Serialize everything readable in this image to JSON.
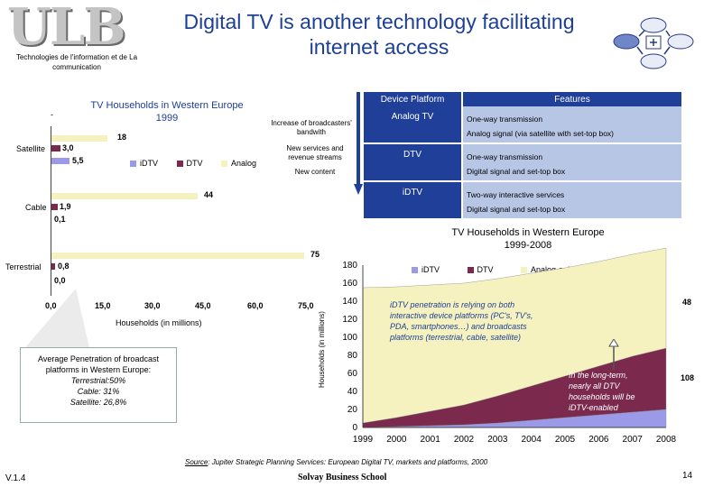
{
  "header": {
    "logo_text": "ULB",
    "logo_subtitle": "Technologies de l'information et de La communication",
    "title_line1": "Digital TV is another technology facilitating",
    "title_line2": "internet access"
  },
  "left_chart": {
    "title_line1": "TV Households in Western Europe",
    "title_line2": "1999",
    "dash": "-",
    "xlabel": "Households (in millions)",
    "legend": [
      "iDTV",
      "DTV",
      "Analog"
    ],
    "categories": [
      "Satellite",
      "Cable",
      "Terrestrial"
    ],
    "value_labels": {
      "satellite": {
        "analog": "18",
        "dtv": "3,0",
        "idtv": "5,5"
      },
      "cable": {
        "analog": "44",
        "dtv": "1,9",
        "idtv": "0,1"
      },
      "terrestrial": {
        "analog": "75",
        "dtv": "0,8",
        "idtv": "0,0"
      }
    },
    "ticks": [
      "0,0",
      "15,0",
      "30,0",
      "45,0",
      "60,0",
      "75,0"
    ],
    "colors": {
      "idtv": "#9a9ae8",
      "dtv": "#7b2a4e",
      "analog": "#f5f2c0"
    }
  },
  "arrow_labels": {
    "l1": "Increase of broadcasters' bandwith",
    "l2": "New services and revenue streams",
    "l3": "New content"
  },
  "table": {
    "head_platform": "Device Platform",
    "head_features": "Features",
    "rows": [
      {
        "platform": "Analog TV",
        "f1": "One-way transmission",
        "f2": "Analog signal (via satellite with set-top box)"
      },
      {
        "platform": "DTV",
        "f1": "One-way transmission",
        "f2": "Digital signal and set-top box"
      },
      {
        "platform": "iDTV",
        "f1": "Two-way interactive services",
        "f2": "Digital signal and set-top box"
      }
    ]
  },
  "penetration": {
    "line1": "Average Penetration of broadcast",
    "line2": "platforms in Western Europe:",
    "line3": "Terrestrial:50%",
    "line4": "Cable: 31%",
    "line5": "Satellite: 26,8%"
  },
  "chart_data": [
    {
      "type": "bar",
      "title": "TV Households in Western Europe 1999",
      "orientation": "horizontal",
      "categories": [
        "Satellite",
        "Cable",
        "Terrestrial"
      ],
      "series": [
        {
          "name": "Analog",
          "values": [
            18,
            44,
            75
          ]
        },
        {
          "name": "DTV",
          "values": [
            3.0,
            1.9,
            0.8
          ]
        },
        {
          "name": "iDTV",
          "values": [
            5.5,
            0.1,
            0.0
          ]
        }
      ],
      "xlabel": "Households (in millions)",
      "xlim": [
        0,
        75
      ]
    },
    {
      "type": "area",
      "title": "TV Households in Western Europe 1999-2008",
      "x": [
        "1999",
        "2000",
        "2001",
        "2002",
        "2003",
        "2004",
        "2005",
        "2006",
        "2007",
        "2008"
      ],
      "series": [
        {
          "name": "iDTV",
          "values": [
            0,
            1,
            2,
            3,
            5,
            8,
            11,
            14,
            17,
            20
          ]
        },
        {
          "name": "DTV",
          "values": [
            5,
            10,
            16,
            22,
            30,
            38,
            46,
            54,
            62,
            68
          ]
        },
        {
          "name": "Analog-only",
          "values": [
            150,
            145,
            140,
            135,
            130,
            125,
            120,
            116,
            113,
            111
          ]
        }
      ],
      "ylabel": "Households (in millions)",
      "yticks": [
        "0",
        "20",
        "40",
        "60",
        "80",
        "100",
        "120",
        "140",
        "160",
        "180"
      ],
      "ylim": [
        0,
        180
      ],
      "annotations": {
        "a1": "iDTV penetration is relying on both interactive device platforms (PC's, TV's, PDA, smartphones…) and broadcasts platforms (terrestrial, cable, satellite)",
        "a2": "In the long-term, nearly all DTV households will be iDTV-enabled",
        "lab48": "48",
        "lab108": "108"
      }
    }
  ],
  "right_chart_text": {
    "title_line1": "TV Households in Western Europe",
    "title_line2": "1999-2008",
    "ylabel": "Households (in millions)",
    "legend": [
      "iDTV",
      "DTV",
      "Analog-only"
    ]
  },
  "footer": {
    "source_label": "Source",
    "source_text": ": Jupiter Strategic Planning Services: European Digital TV, markets and platforms, 2000",
    "version": "V.1.4",
    "school": "Solvay Business School",
    "page": "14"
  }
}
